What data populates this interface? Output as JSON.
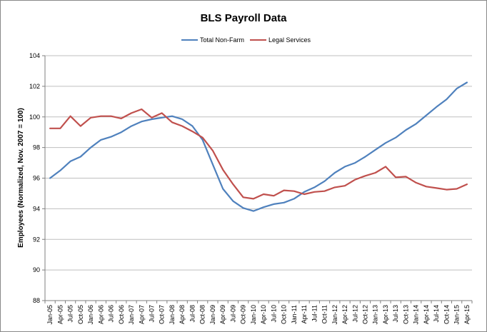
{
  "chart_data": {
    "type": "line",
    "title": "BLS Payroll Data",
    "xlabel": "",
    "ylabel": "Employees  (Normalized, Nov. 2007 = 100)",
    "ylim": [
      88,
      104
    ],
    "yticks": [
      88,
      90,
      92,
      94,
      96,
      98,
      100,
      102,
      104
    ],
    "grid": "horizontal",
    "legend_position": "top",
    "categories": [
      "Jan-05",
      "Apr-05",
      "Jul-05",
      "Oct-05",
      "Jan-06",
      "Apr-06",
      "Jul-06",
      "Oct-06",
      "Jan-07",
      "Apr-07",
      "Jul-07",
      "Oct-07",
      "Jan-08",
      "Apr-08",
      "Jul-08",
      "Oct-08",
      "Jan-09",
      "Apr-09",
      "Jul-09",
      "Oct-09",
      "Jan-10",
      "Apr-10",
      "Jul-10",
      "Oct-10",
      "Jan-11",
      "Apr-11",
      "Jul-11",
      "Oct-11",
      "Jan-12",
      "Apr-12",
      "Jul-12",
      "Oct-12",
      "Jan-13",
      "Apr-13",
      "Jul-13",
      "Oct-13",
      "Jan-14",
      "Apr-14",
      "Jul-14",
      "Oct-14",
      "Jan-15",
      "Apr-15"
    ],
    "series": [
      {
        "name": "Total Non-Farm",
        "color": "#4f81bd",
        "values": [
          96.0,
          96.5,
          97.1,
          97.4,
          98.0,
          98.5,
          98.7,
          99.0,
          99.4,
          99.7,
          99.85,
          99.95,
          100.05,
          99.85,
          99.4,
          98.5,
          96.9,
          95.3,
          94.5,
          94.05,
          93.85,
          94.1,
          94.3,
          94.4,
          94.65,
          95.1,
          95.4,
          95.8,
          96.35,
          96.75,
          97.0,
          97.4,
          97.85,
          98.3,
          98.65,
          99.15,
          99.55,
          100.1,
          100.65,
          101.15,
          101.85,
          102.25
        ]
      },
      {
        "name": "Legal Services",
        "color": "#c0504d",
        "values": [
          99.25,
          99.25,
          100.05,
          99.4,
          99.95,
          100.05,
          100.05,
          99.9,
          100.25,
          100.5,
          99.95,
          100.25,
          99.65,
          99.4,
          99.05,
          98.65,
          97.8,
          96.55,
          95.6,
          94.75,
          94.65,
          94.95,
          94.85,
          95.2,
          95.15,
          94.95,
          95.1,
          95.15,
          95.4,
          95.5,
          95.9,
          96.15,
          96.35,
          96.75,
          96.05,
          96.1,
          95.7,
          95.45,
          95.35,
          95.25,
          95.3,
          95.6
        ]
      }
    ]
  }
}
